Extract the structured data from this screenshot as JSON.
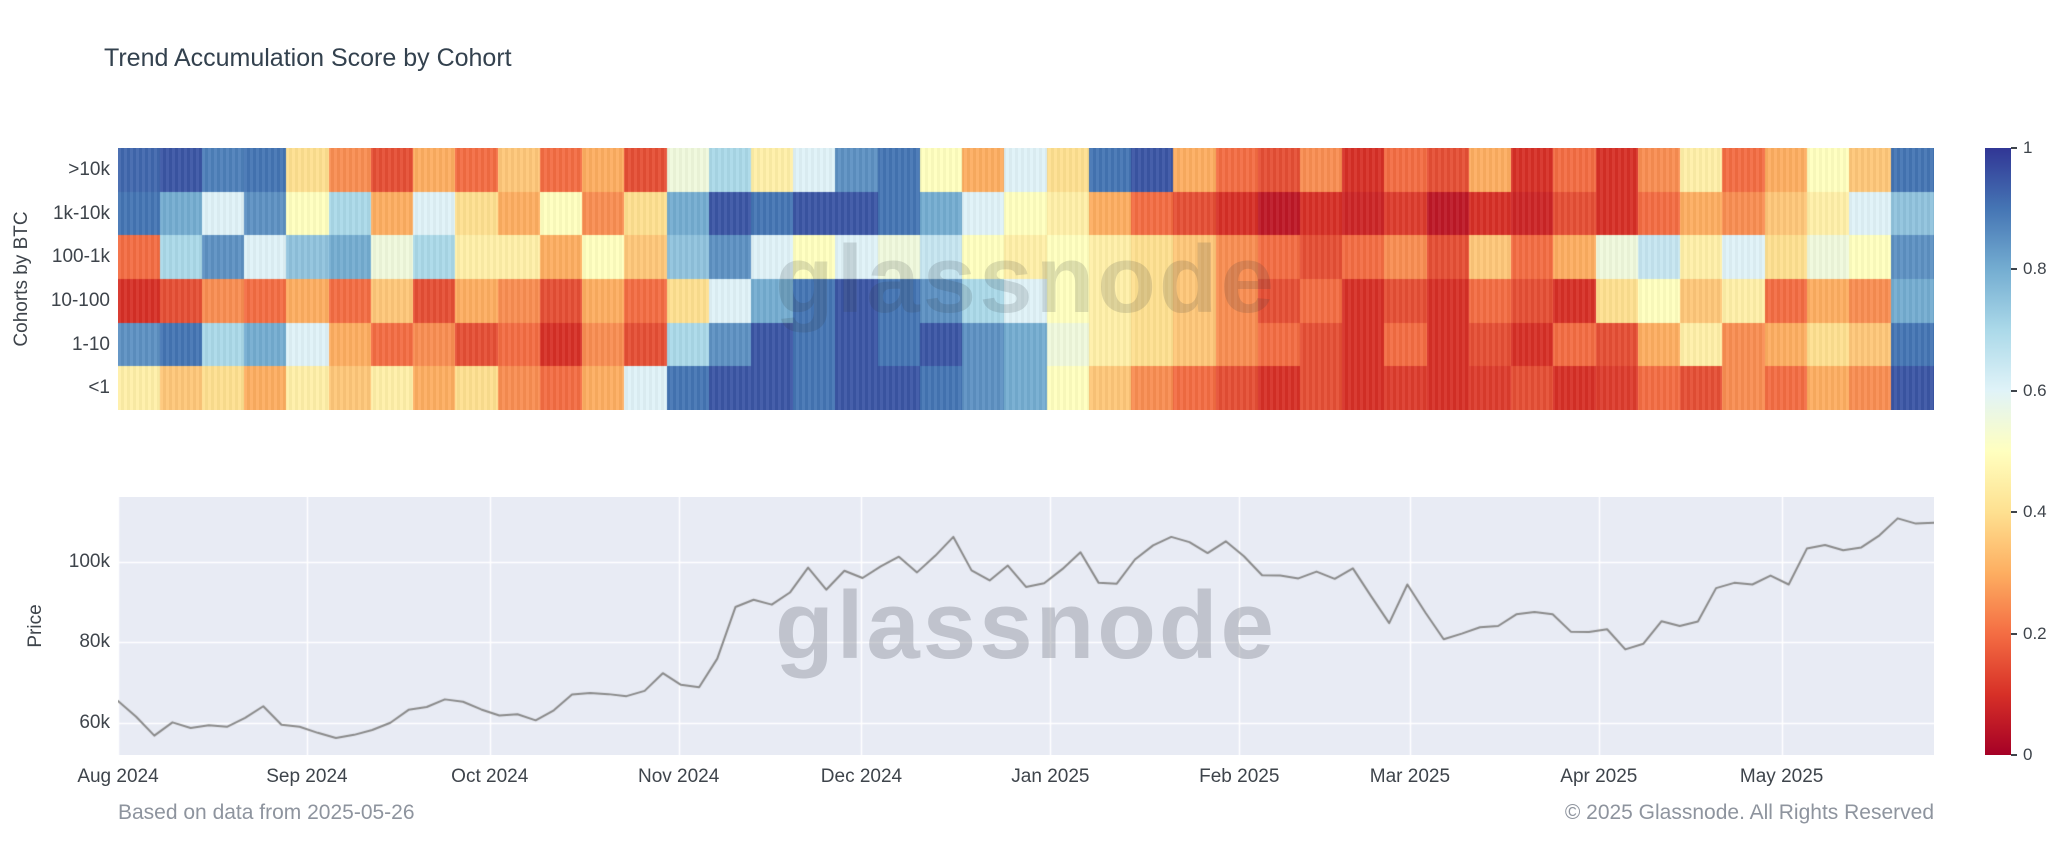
{
  "page": {
    "title": "Trend Accumulation Score by Cohort",
    "footer_left": "Based on data from 2025-05-26",
    "footer_right": "© 2025 Glassnode. All Rights Reserved",
    "watermark": "glassnode"
  },
  "colors": {
    "title_text": "#33414e",
    "axis_text": "#3e444b",
    "footer_text": "#8e949e",
    "plot_bg": "#e8ebf4",
    "grid": "#ffffff",
    "price_line": "#8a8a8a"
  },
  "chart_data": [
    {
      "type": "heatmap",
      "title": "Trend Accumulation Score by Cohort",
      "ylabel": "Cohorts by BTC",
      "x_start": "2024-08-01",
      "x_end": "2025-05-26",
      "time_step": "weekly",
      "colorscale": "RdYlBu",
      "zmin": 0,
      "zmax": 1,
      "colorscale_stops": [
        "#a50026",
        "#d73027",
        "#f46d43",
        "#fdae61",
        "#fee090",
        "#ffffbf",
        "#e0f3f8",
        "#abd9e9",
        "#74add1",
        "#4575b4",
        "#313695"
      ],
      "colorbar_ticks": [
        1,
        0.8,
        0.6,
        0.4,
        0.2,
        0
      ],
      "colorbar_tick_labels": [
        "1",
        "0.8",
        "0.6",
        "0.4",
        "0.2",
        "0"
      ],
      "rows": [
        ">10k",
        "1k-10k",
        "100-1k",
        "10-100",
        "1-10",
        "<1"
      ],
      "values": {
        ">10k": [
          0.92,
          0.95,
          0.88,
          0.9,
          0.4,
          0.25,
          0.15,
          0.3,
          0.2,
          0.35,
          0.2,
          0.3,
          0.15,
          0.55,
          0.7,
          0.45,
          0.6,
          0.85,
          0.9,
          0.5,
          0.3,
          0.6,
          0.4,
          0.9,
          0.95,
          0.3,
          0.2,
          0.15,
          0.25,
          0.1,
          0.2,
          0.15,
          0.3,
          0.1,
          0.2,
          0.1,
          0.25,
          0.45,
          0.2,
          0.3,
          0.5,
          0.35,
          0.9
        ],
        "1k-10k": [
          0.9,
          0.8,
          0.6,
          0.85,
          0.5,
          0.7,
          0.3,
          0.6,
          0.4,
          0.3,
          0.5,
          0.25,
          0.4,
          0.8,
          0.95,
          0.9,
          0.95,
          0.95,
          0.9,
          0.8,
          0.6,
          0.5,
          0.45,
          0.3,
          0.2,
          0.15,
          0.1,
          0.05,
          0.1,
          0.08,
          0.12,
          0.05,
          0.1,
          0.08,
          0.15,
          0.1,
          0.2,
          0.3,
          0.25,
          0.35,
          0.45,
          0.6,
          0.75
        ],
        "100-1k": [
          0.2,
          0.7,
          0.85,
          0.6,
          0.75,
          0.8,
          0.55,
          0.7,
          0.45,
          0.45,
          0.3,
          0.5,
          0.35,
          0.75,
          0.85,
          0.6,
          0.5,
          0.6,
          0.55,
          0.65,
          0.5,
          0.45,
          0.5,
          0.45,
          0.4,
          0.35,
          0.25,
          0.2,
          0.15,
          0.2,
          0.25,
          0.15,
          0.35,
          0.2,
          0.3,
          0.55,
          0.65,
          0.45,
          0.6,
          0.4,
          0.55,
          0.5,
          0.85
        ],
        "10-100": [
          0.1,
          0.15,
          0.25,
          0.2,
          0.3,
          0.2,
          0.35,
          0.15,
          0.3,
          0.25,
          0.15,
          0.3,
          0.2,
          0.4,
          0.6,
          0.8,
          0.9,
          0.95,
          0.9,
          0.85,
          0.7,
          0.6,
          0.5,
          0.45,
          0.4,
          0.35,
          0.25,
          0.15,
          0.2,
          0.1,
          0.15,
          0.1,
          0.2,
          0.15,
          0.1,
          0.4,
          0.5,
          0.35,
          0.45,
          0.2,
          0.3,
          0.25,
          0.8
        ],
        "1-10": [
          0.85,
          0.9,
          0.7,
          0.8,
          0.6,
          0.3,
          0.2,
          0.25,
          0.15,
          0.2,
          0.1,
          0.25,
          0.15,
          0.7,
          0.85,
          0.95,
          0.9,
          0.95,
          0.9,
          0.95,
          0.85,
          0.8,
          0.55,
          0.45,
          0.4,
          0.35,
          0.25,
          0.2,
          0.15,
          0.1,
          0.2,
          0.1,
          0.15,
          0.1,
          0.2,
          0.15,
          0.3,
          0.45,
          0.25,
          0.3,
          0.4,
          0.35,
          0.9
        ],
        "<1": [
          0.45,
          0.35,
          0.4,
          0.3,
          0.45,
          0.35,
          0.45,
          0.3,
          0.4,
          0.25,
          0.2,
          0.3,
          0.6,
          0.9,
          0.95,
          0.95,
          0.9,
          0.95,
          0.95,
          0.9,
          0.85,
          0.8,
          0.5,
          0.35,
          0.25,
          0.2,
          0.15,
          0.1,
          0.15,
          0.1,
          0.12,
          0.1,
          0.12,
          0.15,
          0.1,
          0.12,
          0.2,
          0.15,
          0.25,
          0.2,
          0.3,
          0.25,
          0.95
        ]
      }
    },
    {
      "type": "line",
      "ylabel": "Price",
      "x_start": "2024-08-01",
      "x_end": "2025-05-26",
      "total_days": 298,
      "x_tick_labels": [
        "Aug 2024",
        "Sep 2024",
        "Oct 2024",
        "Nov 2024",
        "Dec 2024",
        "Jan 2025",
        "Feb 2025",
        "Mar 2025",
        "Apr 2025",
        "May 2025"
      ],
      "x_tick_day_offsets": [
        0,
        31,
        61,
        92,
        122,
        153,
        184,
        212,
        243,
        273
      ],
      "yticks_thousands": [
        60,
        80,
        100
      ],
      "ytick_labels": [
        "60k",
        "80k",
        "100k"
      ],
      "ylim_thousands": [
        52,
        116
      ],
      "grid": true,
      "values_usd_thousands": [
        65.4,
        61.5,
        56.8,
        60.1,
        58.7,
        59.4,
        59.0,
        61.2,
        64.1,
        59.5,
        59.0,
        57.5,
        56.2,
        57.0,
        58.2,
        60.0,
        63.2,
        63.9,
        65.8,
        65.2,
        63.3,
        61.8,
        62.1,
        60.6,
        63.1,
        67.0,
        67.4,
        67.1,
        66.6,
        67.9,
        72.3,
        69.4,
        68.8,
        75.9,
        88.7,
        90.5,
        89.3,
        92.3,
        98.5,
        93.0,
        97.7,
        95.9,
        98.8,
        101.2,
        97.3,
        101.4,
        106.1,
        97.8,
        95.3,
        99.0,
        93.7,
        94.6,
        98.1,
        102.3,
        94.7,
        94.5,
        100.5,
        104.0,
        106.1,
        104.8,
        102.1,
        105.0,
        101.3,
        96.6,
        96.5,
        95.8,
        97.5,
        95.7,
        98.3,
        91.4,
        84.7,
        94.3,
        87.3,
        80.7,
        82.1,
        83.7,
        84.0,
        86.9,
        87.5,
        86.9,
        82.6,
        82.5,
        83.2,
        78.2,
        79.6,
        85.2,
        84.0,
        85.1,
        93.4,
        94.7,
        94.3,
        96.5,
        94.3,
        103.2,
        104.1,
        102.8,
        103.5,
        106.5,
        110.7,
        109.4,
        109.6
      ]
    }
  ]
}
